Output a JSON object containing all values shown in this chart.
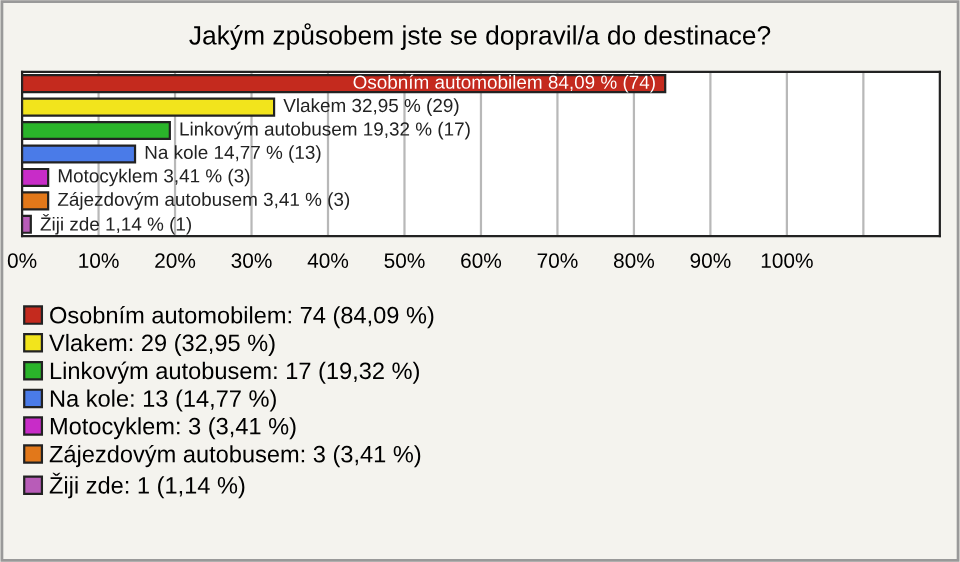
{
  "chart_data": {
    "type": "bar",
    "orientation": "horizontal",
    "stacked": true,
    "title": "Jakým způsobem jste se dopravil/a do destinace?",
    "categories": [
      null,
      null,
      null,
      null,
      null,
      null,
      null
    ],
    "series": [
      {
        "name": "Osobním automobilem: 74 (84,09 %)",
        "color": "#c42a1e",
        "values": [
          84.09,
          null,
          null,
          null,
          null,
          null,
          null
        ],
        "value_labels": [
          "Osobním automobilem 84,09 % (74)",
          null,
          null,
          null,
          null,
          null,
          null
        ]
      },
      {
        "name": "Vlakem: 29 (32,95 %)",
        "color": "#f2e41c",
        "values": [
          null,
          32.95,
          null,
          null,
          null,
          null,
          null
        ],
        "value_labels": [
          null,
          "Vlakem 32,95 % (29)",
          null,
          null,
          null,
          null,
          null
        ]
      },
      {
        "name": "Linkovým autobusem: 17 (19,32 %)",
        "color": "#2ab42a",
        "values": [
          null,
          null,
          19.32,
          null,
          null,
          null,
          null
        ],
        "value_labels": [
          null,
          null,
          "Linkovým autobusem 19,32 % (17)",
          null,
          null,
          null,
          null
        ]
      },
      {
        "name": "Na kole: 13 (14,77 %)",
        "color": "#4a7be8",
        "values": [
          null,
          null,
          null,
          14.77,
          null,
          null,
          null
        ],
        "value_labels": [
          null,
          null,
          null,
          "Na kole 14,77 % (13)",
          null,
          null,
          null
        ]
      },
      {
        "name": "Motocyklem: 3 (3,41 %)",
        "color": "#c82cc8",
        "values": [
          null,
          null,
          null,
          null,
          3.41,
          null,
          null
        ],
        "value_labels": [
          null,
          null,
          null,
          null,
          "Motocyklem 3,41 % (3)",
          null,
          null
        ]
      },
      {
        "name": "Zájezdovým autobusem: 3 (3,41 %)",
        "color": "#e2781a",
        "values": [
          null,
          null,
          null,
          null,
          null,
          3.41,
          null
        ],
        "value_labels": [
          null,
          null,
          null,
          null,
          null,
          "Zájezdovým autobusem 3,41 % (3)",
          null
        ]
      },
      {
        "name": "Žiji zde: 1 (1,14 %)",
        "color": "#b85cb8",
        "values": [
          null,
          null,
          null,
          null,
          null,
          null,
          1.14
        ],
        "value_labels": [
          null,
          null,
          null,
          null,
          null,
          null,
          "Žiji zde 1,14 % (1)"
        ]
      }
    ],
    "xlim": [
      0,
      120
    ],
    "xticks": [
      {
        "value": 0,
        "label": "0%"
      },
      {
        "value": 10,
        "label": "10%"
      },
      {
        "value": 20,
        "label": "20%"
      },
      {
        "value": 30,
        "label": "30%"
      },
      {
        "value": 40,
        "label": "40%"
      },
      {
        "value": 50,
        "label": "50%"
      },
      {
        "value": 60,
        "label": "60%"
      },
      {
        "value": 70,
        "label": "70%"
      },
      {
        "value": 80,
        "label": "80%"
      },
      {
        "value": 90,
        "label": "90%"
      },
      {
        "value": 100,
        "label": "100%"
      },
      {
        "value": 110,
        "label": null
      }
    ],
    "grid": "x",
    "legend": "bottom"
  }
}
